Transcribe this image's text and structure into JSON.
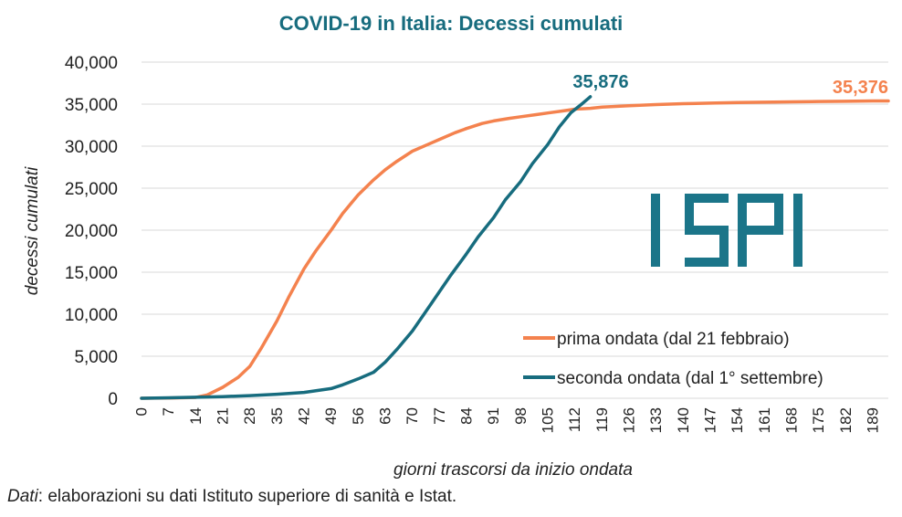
{
  "colors": {
    "first_wave": "#f4824e",
    "second_wave": "#176c7e",
    "title": "#176c7e",
    "grid": "#d9d9d9",
    "logo": "#1b7589"
  },
  "logo": {
    "text": "ISPI"
  },
  "source": {
    "label": "Dati",
    "text": ": elaborazioni su dati Istituto superiore di sanità e Istat."
  },
  "chart_data": {
    "type": "line",
    "title": "COVID-19 in Italia: Decessi cumulati",
    "xlabel": "giorni trascorsi da inizio ondata",
    "ylabel": "decessi cumulati",
    "xlim": [
      0,
      193
    ],
    "ylim": [
      0,
      40000
    ],
    "x_ticks": [
      0,
      7,
      14,
      21,
      28,
      35,
      42,
      49,
      56,
      63,
      70,
      77,
      84,
      91,
      98,
      105,
      112,
      119,
      126,
      133,
      140,
      147,
      154,
      161,
      168,
      175,
      182,
      189
    ],
    "y_ticks": [
      0,
      5000,
      10000,
      15000,
      20000,
      25000,
      30000,
      35000,
      40000
    ],
    "y_tick_labels": [
      "0",
      "5,000",
      "10,000",
      "15,000",
      "20,000",
      "25,000",
      "30,000",
      "35,000",
      "40,000"
    ],
    "grid": true,
    "legend_position": "bottom-right",
    "series": [
      {
        "name": "prima ondata (dal 21 febbraio)",
        "color": "#f4824e",
        "end_label": "35,376",
        "x": [
          0,
          7,
          14,
          17,
          21,
          25,
          28,
          31,
          35,
          38,
          42,
          45,
          49,
          52,
          56,
          60,
          63,
          66,
          70,
          74,
          77,
          81,
          84,
          88,
          91,
          95,
          98,
          102,
          105,
          109,
          112,
          116,
          119,
          126,
          133,
          140,
          147,
          154,
          161,
          168,
          175,
          182,
          189,
          193
        ],
        "values": [
          0,
          20,
          100,
          400,
          1300,
          2500,
          3800,
          6000,
          9200,
          12000,
          15400,
          17500,
          20000,
          22000,
          24200,
          26000,
          27200,
          28200,
          29400,
          30200,
          30800,
          31600,
          32100,
          32700,
          33000,
          33300,
          33500,
          33750,
          33950,
          34200,
          34400,
          34500,
          34650,
          34800,
          34950,
          35050,
          35120,
          35180,
          35230,
          35270,
          35310,
          35340,
          35376,
          35376
        ]
      },
      {
        "name": "seconda ondata (dal 1° settembre)",
        "color": "#176c7e",
        "end_label": "35,876",
        "x": [
          0,
          7,
          14,
          21,
          28,
          35,
          42,
          49,
          52,
          56,
          60,
          63,
          66,
          70,
          73,
          77,
          80,
          84,
          87,
          91,
          94,
          98,
          101,
          105,
          108,
          111,
          114,
          116
        ],
        "values": [
          0,
          50,
          120,
          200,
          320,
          480,
          700,
          1150,
          1600,
          2300,
          3100,
          4300,
          5800,
          8000,
          10000,
          12700,
          14700,
          17200,
          19200,
          21500,
          23600,
          25800,
          27900,
          30200,
          32300,
          34000,
          35100,
          35876
        ]
      }
    ]
  }
}
